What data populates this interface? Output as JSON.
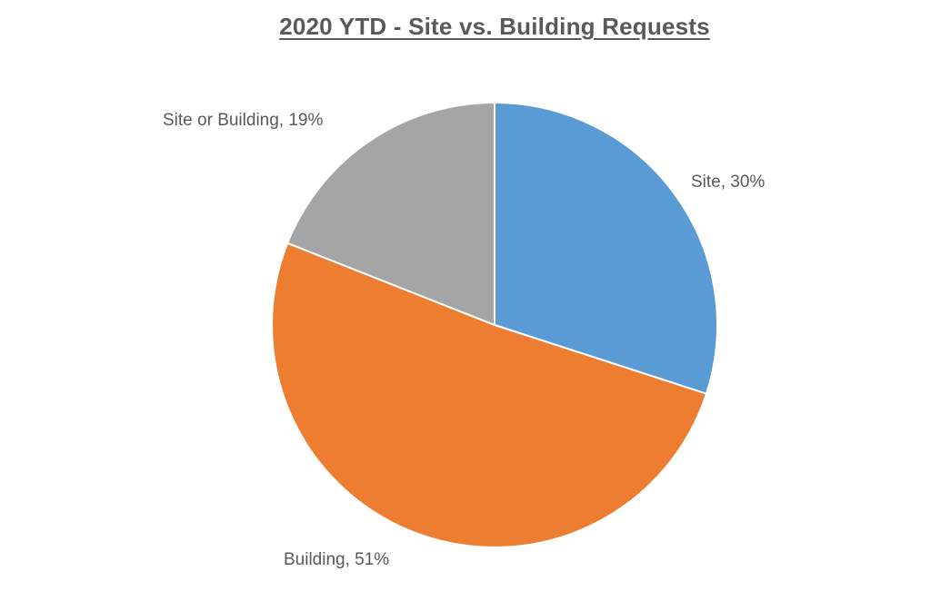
{
  "chart_data": {
    "type": "pie",
    "title": "2020 YTD - Site vs. Building Requests",
    "slices": [
      {
        "label": "Site",
        "value": 30,
        "display": "Site, 30%",
        "color": "#5b9bd5"
      },
      {
        "label": "Building",
        "value": 51,
        "display": "Building, 51%",
        "color": "#ed7d31"
      },
      {
        "label": "Site or Building",
        "value": 19,
        "display": "Site or Building, 19%",
        "color": "#a5a5a5"
      }
    ],
    "start_angle_deg": 0,
    "direction": "clockwise",
    "legend": "none",
    "data_labels": "outside"
  }
}
